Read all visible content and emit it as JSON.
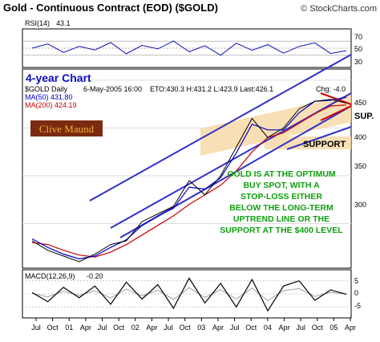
{
  "header": {
    "title": "Gold - Continuous Contract (EOD) ($GOLD)",
    "source": "© StockCharts.com"
  },
  "rsi": {
    "label": "RSI(14)",
    "value": "43.1",
    "ticks": [
      "70",
      "50",
      "30"
    ],
    "levels": [
      70,
      50,
      30
    ]
  },
  "main": {
    "period_label": "4-year Chart",
    "info_symbol": "$GOLD Daily",
    "info_date": "6-May-2005 16:00",
    "info_tz": "ET",
    "info_quote": "O:430.3 H:431.2 L:423.9 Last:426.1",
    "info_change": "Chg: -4.0",
    "ma50_label": "MA(50) 431.80",
    "ma200_label": "MA(200) 424.19",
    "logo": "Clive Maund",
    "annotation_lines": [
      "GOLD IS AT THE OPTIMUM",
      "BUY SPOT, WITH A",
      "STOP-LOSS EITHER",
      "BELOW THE LONG-TERM",
      "UPTREND LINE OR THE",
      "SUPPORT AT THE $400 LEVEL"
    ],
    "sup_label": "SUP.",
    "support_label": "SUPPORT",
    "y_ticks": [
      "450",
      "400",
      "350",
      "300"
    ]
  },
  "macd": {
    "label": "MACD(12,26,9)",
    "value": "-0.20",
    "ticks": [
      "5",
      "0",
      "-5"
    ]
  },
  "x_axis": {
    "labels": [
      "Jul",
      "Oct",
      "01",
      "Apr",
      "Jul",
      "Oct",
      "02",
      "Apr",
      "Jul",
      "Oct",
      "03",
      "Apr",
      "Jul",
      "Oct",
      "04",
      "Apr",
      "Jul",
      "Oct",
      "05",
      "Apr"
    ]
  },
  "colors": {
    "price": "#000000",
    "ma50": "#0000cc",
    "ma200": "#cc0000",
    "channel": "#3030c8",
    "band": "#f7d9a8",
    "annotation": "#10a010",
    "rsi": "#1010c0"
  },
  "chart_data": {
    "type": "line",
    "title": "Gold - Continuous Contract (EOD) ($GOLD)",
    "x": [
      "2000-07",
      "2000-10",
      "2001-01",
      "2001-04",
      "2001-07",
      "2001-10",
      "2002-01",
      "2002-04",
      "2002-07",
      "2002-10",
      "2003-01",
      "2003-04",
      "2003-07",
      "2003-10",
      "2004-01",
      "2004-04",
      "2004-07",
      "2004-10",
      "2005-01",
      "2005-04",
      "2005-05"
    ],
    "ylim": [
      255,
      460
    ],
    "series": [
      {
        "name": "$GOLD Daily",
        "values": [
          282,
          272,
          266,
          260,
          268,
          278,
          282,
          302,
          310,
          318,
          345,
          330,
          350,
          380,
          410,
          390,
          400,
          420,
          428,
          430,
          426
        ]
      },
      {
        "name": "MA(50) 431.80",
        "values": [
          284,
          275,
          268,
          263,
          266,
          275,
          283,
          298,
          308,
          316,
          338,
          336,
          348,
          374,
          404,
          398,
          398,
          416,
          428,
          429,
          432
        ]
      },
      {
        "name": "MA(200) 424.19",
        "values": [
          280,
          278,
          272,
          267,
          265,
          270,
          278,
          288,
          298,
          308,
          320,
          330,
          340,
          355,
          375,
          390,
          395,
          405,
          415,
          423,
          424
        ]
      }
    ],
    "rsi_values": [
      50,
      62,
      38,
      55,
      45,
      66,
      34,
      58,
      48,
      70,
      40,
      57,
      30,
      64,
      44,
      60,
      36,
      55,
      65,
      35,
      43
    ],
    "macd_values": [
      0.5,
      -3.0,
      2.5,
      -1.5,
      3.0,
      -4.0,
      4.5,
      -2.0,
      3.5,
      -5.5,
      6.0,
      -3.5,
      4.0,
      -5.0,
      5.5,
      -6.5,
      3.0,
      5.0,
      -2.5,
      1.5,
      -0.2
    ],
    "ylabel": "",
    "grid": true
  }
}
